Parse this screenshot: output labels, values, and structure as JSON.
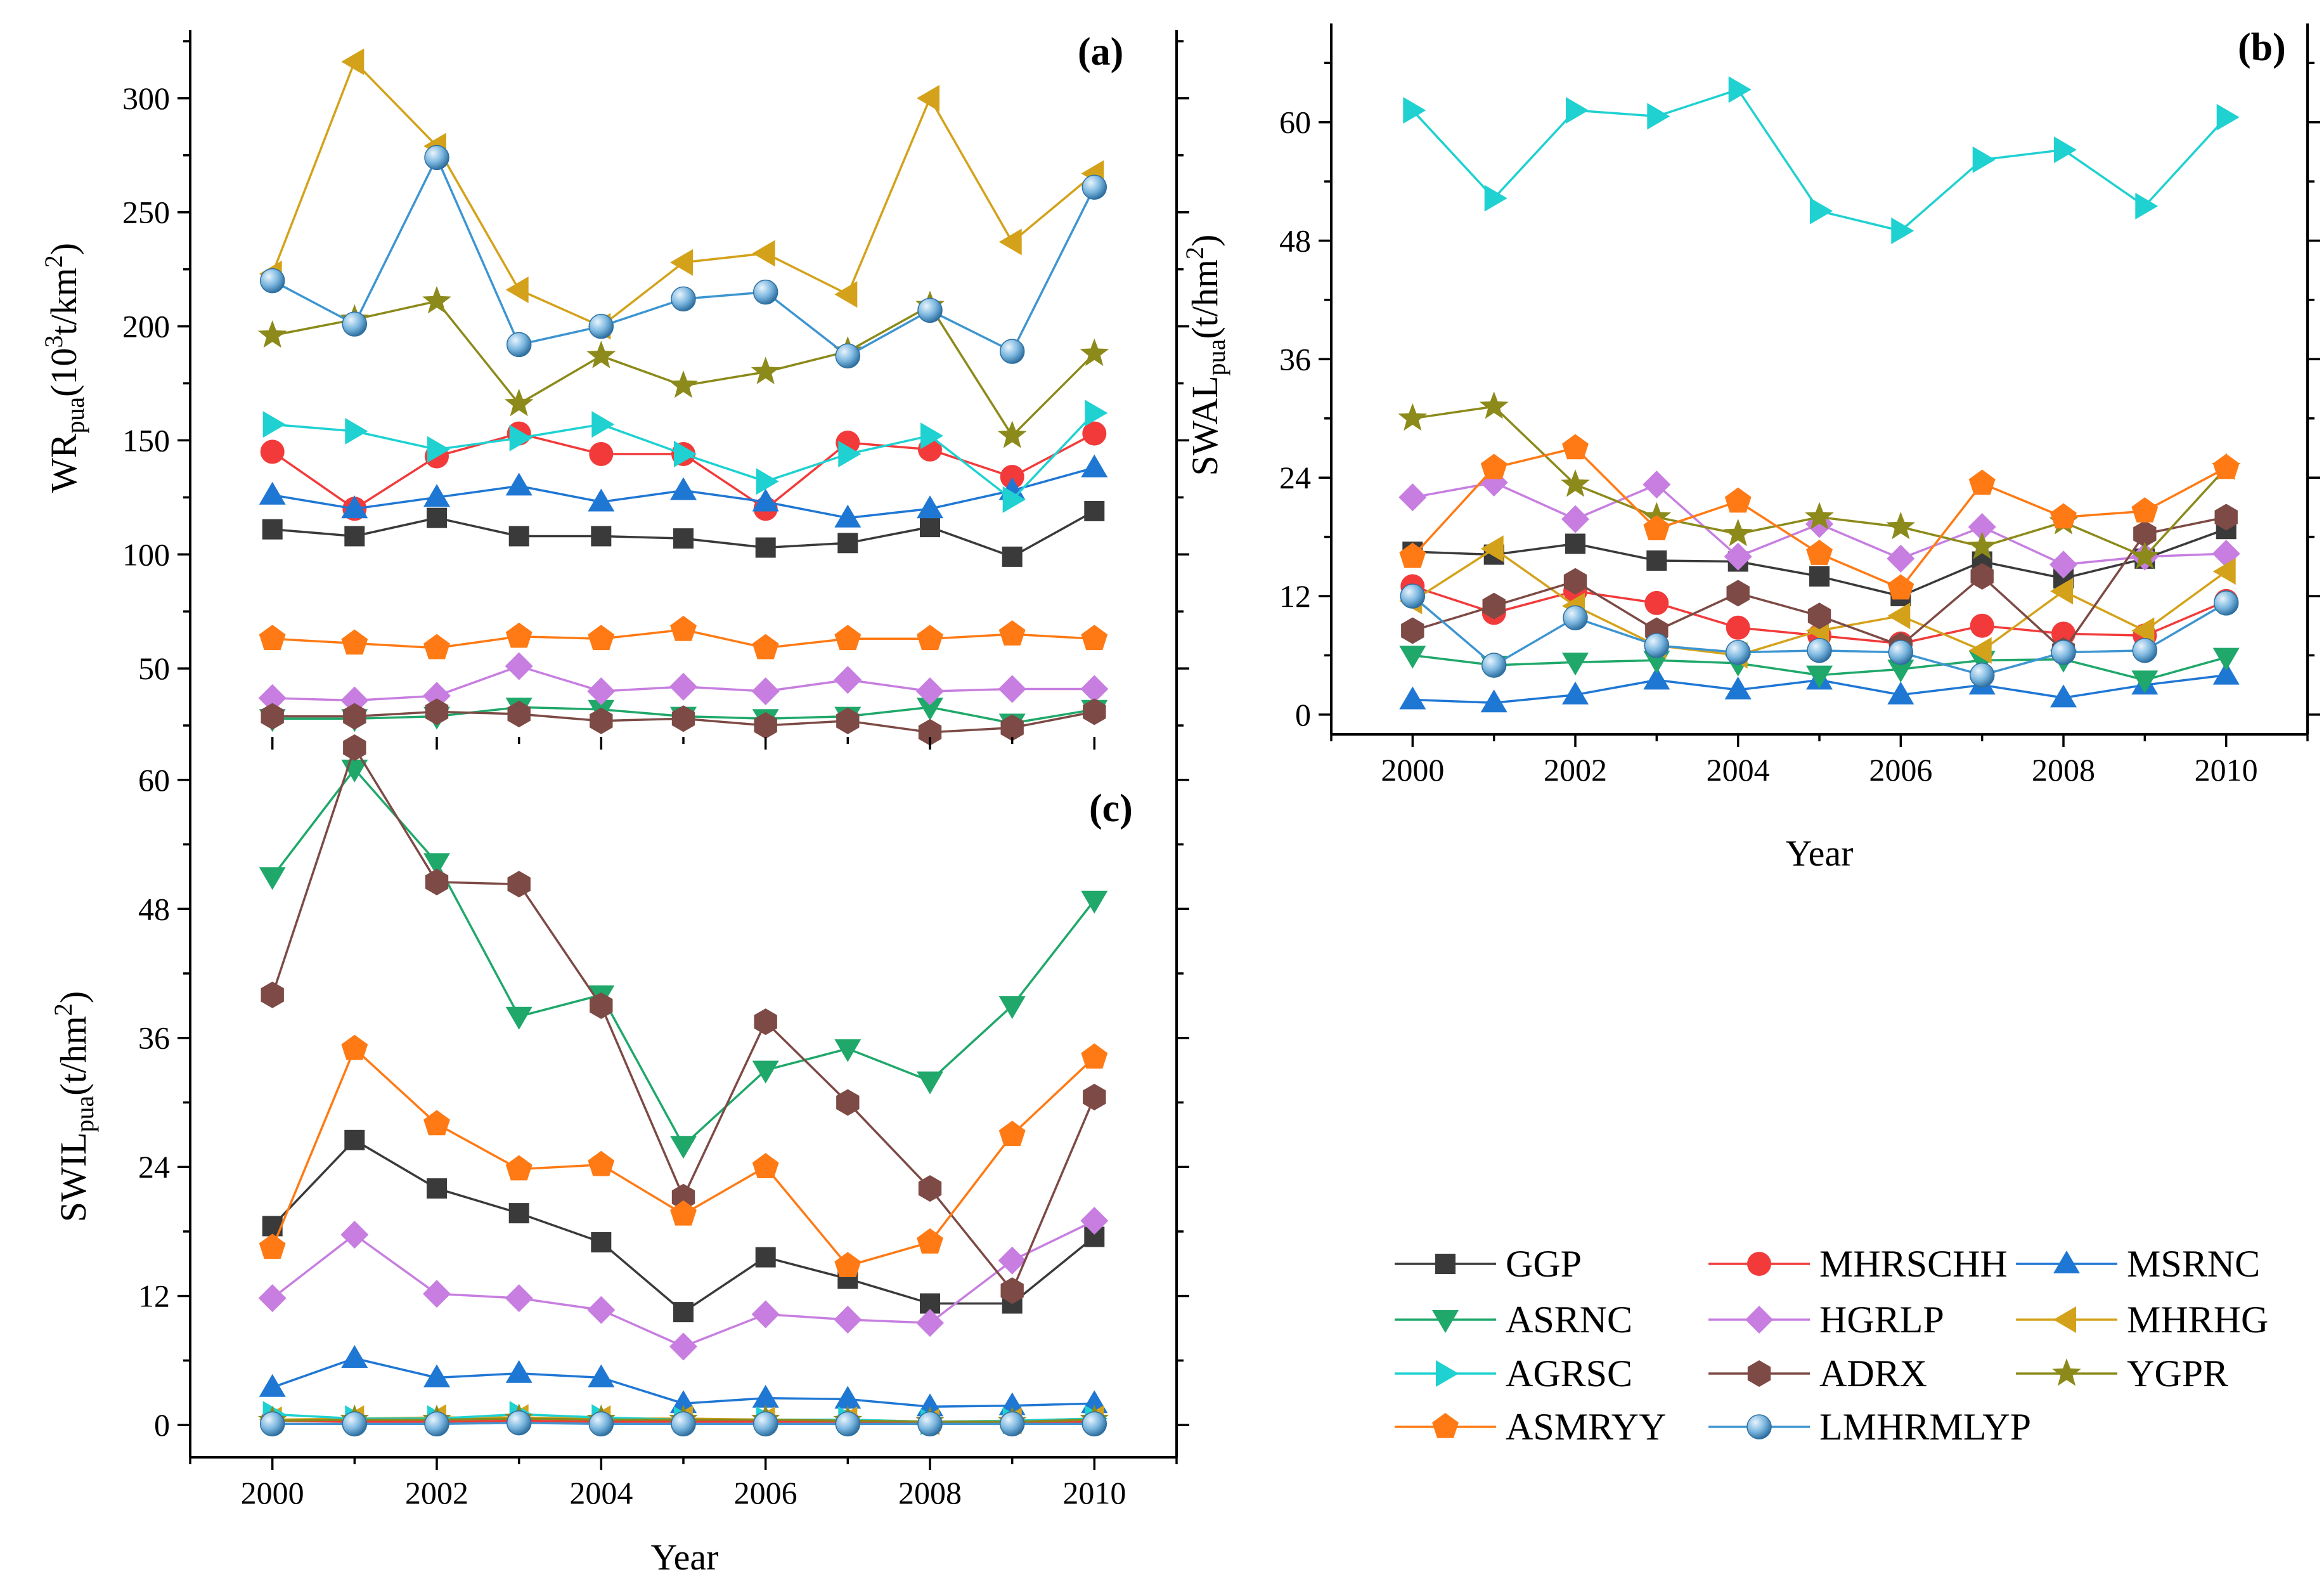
{
  "chart_data": [
    {
      "panel": "(a)",
      "type": "line",
      "ylabel_main": "WR",
      "ylabel_sub": "pua",
      "ylabel_open": "(10",
      "ylabel_sup": "3",
      "ylabel_close": "t/km",
      "ylabel_sup2": "2",
      "ylabel_end": ")",
      "xlabel": "",
      "xlim": [
        1999,
        2011
      ],
      "ylim": [
        20,
        330
      ],
      "xticks": [
        2000,
        2002,
        2004,
        2006,
        2008,
        2010
      ],
      "yticks": [
        50,
        100,
        150,
        200,
        250,
        300
      ],
      "x": [
        2000,
        2001,
        2002,
        2003,
        2004,
        2005,
        2006,
        2007,
        2008,
        2009,
        2010
      ],
      "series": [
        {
          "name": "GGP",
          "values": [
            111,
            108,
            116,
            108,
            108,
            107,
            103,
            105,
            112,
            99,
            119
          ]
        },
        {
          "name": "MHRSCHH",
          "values": [
            145,
            120,
            143,
            153,
            144,
            144,
            120,
            149,
            146,
            134,
            153
          ]
        },
        {
          "name": "MSRNC",
          "values": [
            126,
            120,
            125,
            130,
            123,
            128,
            123,
            116,
            120,
            128,
            138
          ]
        },
        {
          "name": "ASRNC",
          "values": [
            28,
            28,
            29,
            33,
            32,
            29,
            28,
            29,
            33,
            26,
            32
          ]
        },
        {
          "name": "HGRLP",
          "values": [
            37,
            36,
            38,
            51,
            40,
            42,
            40,
            45,
            40,
            41,
            41
          ]
        },
        {
          "name": "MHRHG",
          "values": [
            223,
            316,
            279,
            216,
            200,
            228,
            232,
            214,
            300,
            237,
            267
          ]
        },
        {
          "name": "AGRSC",
          "values": [
            157,
            154,
            146,
            151,
            157,
            144,
            132,
            144,
            152,
            124,
            162
          ]
        },
        {
          "name": "ADRX",
          "values": [
            29,
            29,
            31,
            30,
            27,
            28,
            25,
            27,
            22,
            24,
            31
          ]
        },
        {
          "name": "YGPR",
          "values": [
            196,
            203,
            211,
            166,
            187,
            174,
            180,
            189,
            209,
            152,
            188
          ]
        },
        {
          "name": "ASMRYY",
          "values": [
            63,
            61,
            59,
            64,
            63,
            67,
            59,
            63,
            63,
            65,
            63
          ]
        },
        {
          "name": "LMHRMLYP",
          "values": [
            220,
            201,
            274,
            192,
            200,
            212,
            215,
            187,
            207,
            189,
            261
          ]
        }
      ]
    },
    {
      "panel": "(b)",
      "type": "line",
      "ylabel_main": "SWAL",
      "ylabel_sub": "pua",
      "ylabel_open": "(t/hm",
      "ylabel_sup": "2",
      "ylabel_end": ")",
      "xlabel": "Year",
      "xlim": [
        1999,
        2011
      ],
      "ylim": [
        -2,
        70
      ],
      "xticks": [
        2000,
        2002,
        2004,
        2006,
        2008,
        2010
      ],
      "yticks": [
        0,
        12,
        24,
        36,
        48,
        60
      ],
      "x": [
        2000,
        2001,
        2002,
        2003,
        2004,
        2005,
        2006,
        2007,
        2008,
        2009,
        2010
      ],
      "series": [
        {
          "name": "GGP",
          "values": [
            16.5,
            16.2,
            17.3,
            15.6,
            15.5,
            14.0,
            12.0,
            15.5,
            13.8,
            15.8,
            18.8
          ]
        },
        {
          "name": "MHRSCHH",
          "values": [
            13.0,
            10.3,
            12.5,
            11.3,
            8.8,
            8.0,
            7.2,
            9.0,
            8.2,
            8.0,
            11.5
          ]
        },
        {
          "name": "MSRNC",
          "values": [
            1.5,
            1.2,
            2.0,
            3.5,
            2.5,
            3.5,
            2.0,
            3.0,
            1.7,
            3.0,
            4.0
          ]
        },
        {
          "name": "ASRNC",
          "values": [
            6.0,
            5.0,
            5.3,
            5.5,
            5.2,
            4.0,
            4.6,
            5.5,
            5.6,
            3.5,
            5.8
          ]
        },
        {
          "name": "HGRLP",
          "values": [
            22.0,
            23.5,
            19.8,
            23.3,
            16.0,
            19.3,
            15.8,
            19.0,
            15.2,
            16.0,
            16.3
          ]
        },
        {
          "name": "MHRHG",
          "values": [
            11.5,
            16.8,
            11.0,
            7.0,
            6.0,
            8.5,
            10.0,
            6.5,
            12.5,
            8.5,
            14.5
          ]
        },
        {
          "name": "AGRSC",
          "values": [
            61.2,
            52.3,
            61.2,
            60.6,
            63.3,
            51.0,
            49.0,
            56.2,
            57.2,
            51.5,
            60.5
          ]
        },
        {
          "name": "ADRX",
          "values": [
            8.5,
            11.0,
            13.5,
            8.5,
            12.3,
            10.0,
            7.0,
            14.0,
            6.5,
            18.3,
            20.0
          ]
        },
        {
          "name": "YGPR",
          "values": [
            30.0,
            31.2,
            23.3,
            20.0,
            18.3,
            20.0,
            19.0,
            17.0,
            19.5,
            16.0,
            25.0
          ]
        },
        {
          "name": "ASMRYY",
          "values": [
            16.0,
            25.0,
            27.0,
            18.8,
            21.6,
            16.3,
            12.8,
            23.4,
            20.0,
            20.6,
            25.0
          ]
        },
        {
          "name": "LMHRMLYP",
          "values": [
            12.0,
            5.0,
            9.8,
            7.0,
            6.3,
            6.5,
            6.3,
            4.0,
            6.3,
            6.5,
            11.3
          ]
        }
      ]
    },
    {
      "panel": "(c)",
      "type": "line",
      "ylabel_main": "SWIL",
      "ylabel_sub": "pua",
      "ylabel_open": "(t/hm",
      "ylabel_sup": "2",
      "ylabel_end": ")",
      "xlabel": "Year",
      "xlim": [
        1999,
        2011
      ],
      "ylim": [
        -3,
        64
      ],
      "xticks": [
        2000,
        2002,
        2004,
        2006,
        2008,
        2010
      ],
      "yticks": [
        0,
        12,
        24,
        36,
        48,
        60
      ],
      "x": [
        2000,
        2001,
        2002,
        2003,
        2004,
        2005,
        2006,
        2007,
        2008,
        2009,
        2010
      ],
      "series": [
        {
          "name": "GGP",
          "values": [
            18.5,
            26.5,
            22.0,
            19.7,
            17.0,
            10.5,
            15.6,
            13.6,
            11.3,
            11.3,
            17.5
          ]
        },
        {
          "name": "MHRSCHH",
          "values": [
            0.4,
            0.3,
            0.3,
            0.4,
            0.3,
            0.3,
            0.3,
            0.3,
            0.2,
            0.2,
            0.3
          ]
        },
        {
          "name": "MSRNC",
          "values": [
            3.5,
            6.2,
            4.4,
            4.8,
            4.4,
            2.0,
            2.5,
            2.4,
            1.7,
            1.8,
            2.0
          ]
        },
        {
          "name": "ASRNC",
          "values": [
            51.0,
            61.0,
            52.3,
            38.0,
            40.0,
            26.0,
            33.0,
            35.0,
            32.0,
            39.0,
            48.8
          ]
        },
        {
          "name": "HGRLP",
          "values": [
            11.8,
            17.7,
            12.2,
            11.8,
            10.7,
            7.3,
            10.3,
            9.8,
            9.5,
            15.3,
            19.0
          ]
        },
        {
          "name": "MHRHG",
          "values": [
            0.5,
            0.6,
            0.7,
            0.7,
            0.6,
            0.6,
            0.5,
            0.5,
            0.3,
            0.4,
            0.6
          ]
        },
        {
          "name": "AGRSC",
          "values": [
            1.0,
            0.6,
            0.6,
            1.0,
            0.7,
            0.5,
            0.5,
            0.5,
            0.3,
            0.4,
            0.6
          ]
        },
        {
          "name": "ADRX",
          "values": [
            40.0,
            63.0,
            50.5,
            50.3,
            39.0,
            21.2,
            37.5,
            30.0,
            22.0,
            12.5,
            30.5
          ]
        },
        {
          "name": "YGPR",
          "values": [
            0.4,
            0.5,
            0.5,
            0.6,
            0.5,
            0.5,
            0.5,
            0.4,
            0.3,
            0.3,
            0.5
          ]
        },
        {
          "name": "ASMRYY",
          "values": [
            16.5,
            35.0,
            28.0,
            23.8,
            24.2,
            19.6,
            24.0,
            14.8,
            17.0,
            27.0,
            34.2
          ]
        },
        {
          "name": "LMHRMLYP",
          "values": [
            0.1,
            0.1,
            0.1,
            0.2,
            0.1,
            0.1,
            0.1,
            0.1,
            0.1,
            0.1,
            0.1
          ]
        }
      ]
    }
  ],
  "legend": {
    "placement": "bottom-right",
    "entries": [
      "GGP",
      "MHRSCHH",
      "MSRNC",
      "ASRNC",
      "HGRLP",
      "MHRHG",
      "AGRSC",
      "ADRX",
      "YGPR",
      "ASMRYY",
      "LMHRMLYP"
    ]
  },
  "series_styles": {
    "GGP": {
      "color": "#3a3a3a",
      "marker": "square"
    },
    "MHRSCHH": {
      "color": "#f23a3a",
      "marker": "circle"
    },
    "MSRNC": {
      "color": "#1f77d4",
      "marker": "triangle-up"
    },
    "ASRNC": {
      "color": "#1fa86a",
      "marker": "triangle-down"
    },
    "HGRLP": {
      "color": "#c77ee0",
      "marker": "diamond"
    },
    "MHRHG": {
      "color": "#d4a21a",
      "marker": "triangle-left"
    },
    "AGRSC": {
      "color": "#1fd1d1",
      "marker": "triangle-right"
    },
    "ADRX": {
      "color": "#7d4a45",
      "marker": "hexagon"
    },
    "YGPR": {
      "color": "#8c8a1a",
      "marker": "star"
    },
    "ASMRYY": {
      "color": "#ff7a14",
      "marker": "pentagon"
    },
    "LMHRMLYP": {
      "color": "#3d95d1",
      "marker": "sphere"
    }
  }
}
